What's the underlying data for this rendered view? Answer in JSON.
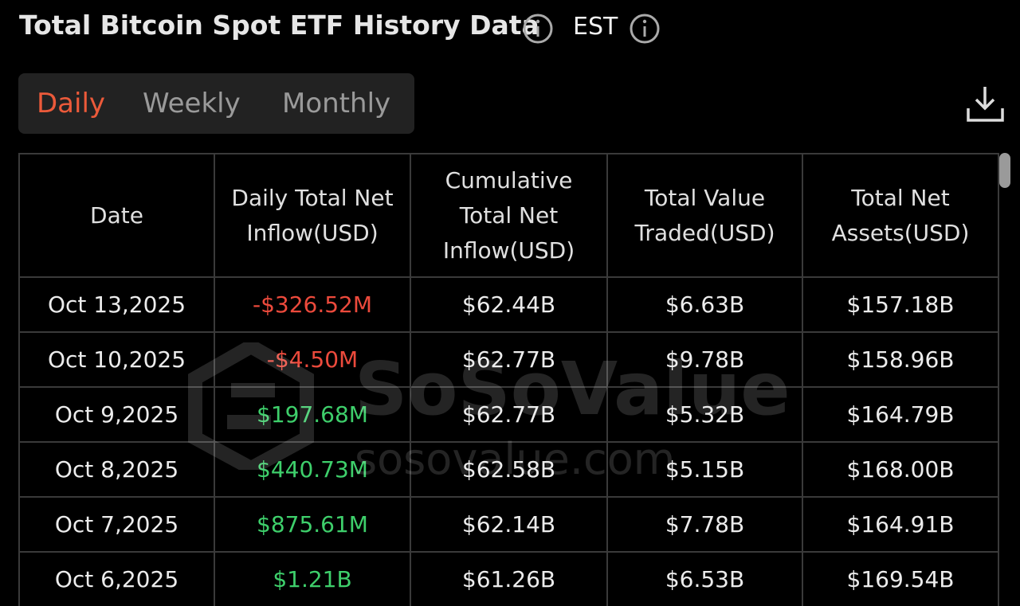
{
  "header": {
    "title": "Total Bitcoin Spot ETF History Data",
    "timezone": "EST"
  },
  "tabs": {
    "items": [
      "Daily",
      "Weekly",
      "Monthly"
    ],
    "active": 0
  },
  "watermark": {
    "brand": "SoSoValue",
    "site": "sosovalue.com"
  },
  "table": {
    "columns": [
      "Date",
      "Daily Total Net Inflow(USD)",
      "Cumulative Total Net Inflow(USD)",
      "Total Value Traded(USD)",
      "Total Net Assets(USD)"
    ],
    "positive_color": "#3ecf6b",
    "negative_color": "#ec4a3c",
    "rows": [
      [
        "Oct 13,2025",
        "-$326.52M",
        "$62.44B",
        "$6.63B",
        "$157.18B"
      ],
      [
        "Oct 10,2025",
        "-$4.50M",
        "$62.77B",
        "$9.78B",
        "$158.96B"
      ],
      [
        "Oct 9,2025",
        "$197.68M",
        "$62.77B",
        "$5.32B",
        "$164.79B"
      ],
      [
        "Oct 8,2025",
        "$440.73M",
        "$62.58B",
        "$5.15B",
        "$168.00B"
      ],
      [
        "Oct 7,2025",
        "$875.61M",
        "$62.14B",
        "$7.78B",
        "$164.91B"
      ],
      [
        "Oct 6,2025",
        "$1.21B",
        "$61.26B",
        "$6.53B",
        "$169.54B"
      ]
    ]
  }
}
